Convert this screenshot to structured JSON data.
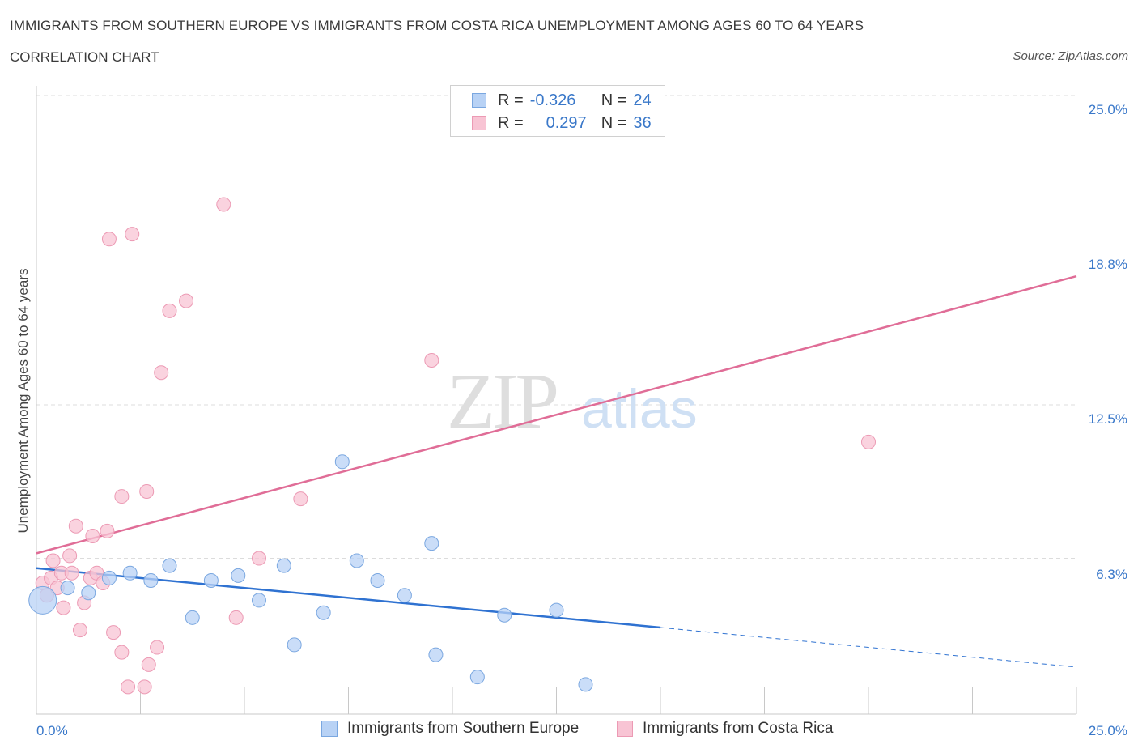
{
  "header": {
    "title": "IMMIGRANTS FROM SOUTHERN EUROPE VS IMMIGRANTS FROM COSTA RICA UNEMPLOYMENT AMONG AGES 60 TO 64 YEARS",
    "subtitle": "CORRELATION CHART",
    "source": "Source: ZipAtlas.com"
  },
  "watermark": {
    "zip": "ZIP",
    "atlas": "atlas"
  },
  "legend": {
    "series1": {
      "r_label": "R =",
      "r_value": "-0.326",
      "n_label": "N =",
      "n_value": "24"
    },
    "series2": {
      "r_label": "R =",
      "r_value": "0.297",
      "n_label": "N =",
      "n_value": "36"
    }
  },
  "colors": {
    "blue_fill": "#b8d2f5",
    "blue_stroke": "#7aa7e0",
    "blue_line": "#2f72d1",
    "pink_fill": "#f8c4d4",
    "pink_stroke": "#ec9ab4",
    "pink_line": "#e06d97",
    "grid": "#dcdcdc",
    "axis_text": "#3a78c9"
  },
  "chart_data": {
    "type": "scatter",
    "title": "IMMIGRANTS FROM SOUTHERN EUROPE VS IMMIGRANTS FROM COSTA RICA UNEMPLOYMENT AMONG AGES 60 TO 64 YEARS",
    "xlabel": "",
    "ylabel": "Unemployment Among Ages 60 to 64 years",
    "xlim": [
      0,
      25
    ],
    "ylim": [
      0,
      25
    ],
    "x_tick_labels": [
      "0.0%",
      "25.0%"
    ],
    "y_tick_labels": [
      "6.3%",
      "12.5%",
      "18.8%",
      "25.0%"
    ],
    "y_ticks": [
      6.3,
      12.5,
      18.8,
      25.0
    ],
    "series": [
      {
        "name": "Immigrants from Southern Europe",
        "color": "blue",
        "R": -0.326,
        "N": 24,
        "points": [
          {
            "x": 0.15,
            "y": 4.6,
            "big": true
          },
          {
            "x": 0.75,
            "y": 5.1
          },
          {
            "x": 1.25,
            "y": 4.9
          },
          {
            "x": 1.75,
            "y": 5.5
          },
          {
            "x": 2.25,
            "y": 5.7
          },
          {
            "x": 2.75,
            "y": 5.4
          },
          {
            "x": 3.2,
            "y": 6.0
          },
          {
            "x": 3.75,
            "y": 3.9
          },
          {
            "x": 4.2,
            "y": 5.4
          },
          {
            "x": 4.85,
            "y": 5.6
          },
          {
            "x": 5.35,
            "y": 4.6
          },
          {
            "x": 5.95,
            "y": 6.0
          },
          {
            "x": 6.2,
            "y": 2.8
          },
          {
            "x": 6.9,
            "y": 4.1
          },
          {
            "x": 7.35,
            "y": 10.2
          },
          {
            "x": 7.7,
            "y": 6.2
          },
          {
            "x": 8.2,
            "y": 5.4
          },
          {
            "x": 8.85,
            "y": 4.8
          },
          {
            "x": 9.5,
            "y": 6.9
          },
          {
            "x": 9.6,
            "y": 2.4
          },
          {
            "x": 10.6,
            "y": 1.5
          },
          {
            "x": 11.25,
            "y": 4.0
          },
          {
            "x": 12.5,
            "y": 4.2
          },
          {
            "x": 13.2,
            "y": 1.2
          }
        ],
        "trend": {
          "x_start": 0.0,
          "y_start": 5.9,
          "x_solid_end": 15.0,
          "y_solid_end": 3.5,
          "x_dash_end": 25.0,
          "y_dash_end": 1.9
        }
      },
      {
        "name": "Immigrants from Costa Rica",
        "color": "pink",
        "R": 0.297,
        "N": 36,
        "points": [
          {
            "x": 0.15,
            "y": 5.3
          },
          {
            "x": 0.25,
            "y": 4.8
          },
          {
            "x": 0.35,
            "y": 5.5
          },
          {
            "x": 0.4,
            "y": 6.2
          },
          {
            "x": 0.5,
            "y": 5.1
          },
          {
            "x": 0.6,
            "y": 5.7
          },
          {
            "x": 0.65,
            "y": 4.3
          },
          {
            "x": 0.8,
            "y": 6.4
          },
          {
            "x": 0.85,
            "y": 5.7
          },
          {
            "x": 0.95,
            "y": 7.6
          },
          {
            "x": 1.05,
            "y": 3.4
          },
          {
            "x": 1.15,
            "y": 4.5
          },
          {
            "x": 1.3,
            "y": 5.5
          },
          {
            "x": 1.35,
            "y": 7.2
          },
          {
            "x": 1.45,
            "y": 5.7
          },
          {
            "x": 1.6,
            "y": 5.3
          },
          {
            "x": 1.7,
            "y": 7.4
          },
          {
            "x": 1.75,
            "y": 19.2
          },
          {
            "x": 1.85,
            "y": 3.3
          },
          {
            "x": 2.05,
            "y": 8.8
          },
          {
            "x": 2.05,
            "y": 2.5
          },
          {
            "x": 2.2,
            "y": 1.1
          },
          {
            "x": 2.3,
            "y": 19.4
          },
          {
            "x": 2.6,
            "y": 1.1
          },
          {
            "x": 2.65,
            "y": 9.0
          },
          {
            "x": 2.7,
            "y": 2.0
          },
          {
            "x": 2.9,
            "y": 2.7
          },
          {
            "x": 3.0,
            "y": 13.8
          },
          {
            "x": 3.2,
            "y": 16.3
          },
          {
            "x": 3.6,
            "y": 16.7
          },
          {
            "x": 4.5,
            "y": 20.6
          },
          {
            "x": 4.8,
            "y": 3.9
          },
          {
            "x": 5.35,
            "y": 6.3
          },
          {
            "x": 6.35,
            "y": 8.7
          },
          {
            "x": 9.5,
            "y": 14.3
          },
          {
            "x": 20.0,
            "y": 11.0
          }
        ],
        "trend": {
          "x_start": 0.0,
          "y_start": 6.5,
          "x_end": 25.0,
          "y_end": 17.7
        }
      }
    ]
  }
}
